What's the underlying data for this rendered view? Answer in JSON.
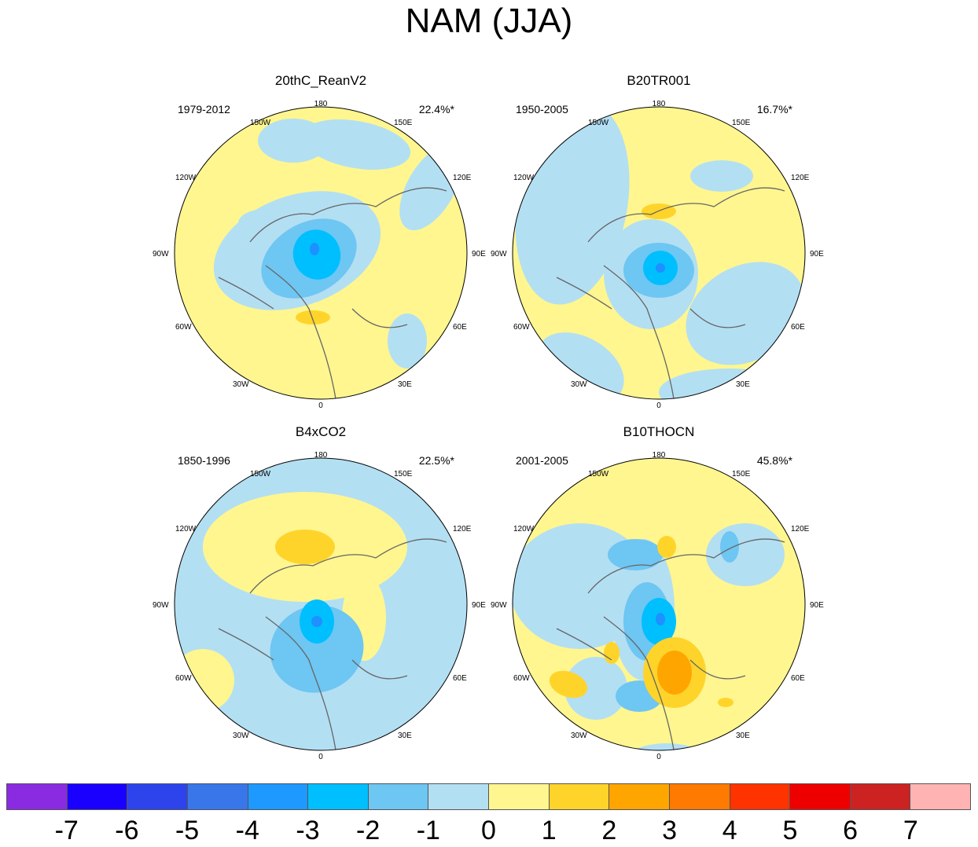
{
  "title": "NAM (JJA)",
  "colors": {
    "cyan_dark": "#00bfff",
    "cyan_mid": "#6ec6f2",
    "light_blue": "#b3dff3",
    "pale_yellow": "#fff68f",
    "gold": "#ffd42a",
    "orange": "#ffa500",
    "blue_core": "#1e90ff"
  },
  "panels": [
    {
      "title": "20thC_ReanV2",
      "period": "1979-2012",
      "variance": "22.4%*",
      "base": "pale_yellow"
    },
    {
      "title": "B20TR001",
      "period": "1950-2005",
      "variance": "16.7%*",
      "base": "pale_yellow"
    },
    {
      "title": "B4xCO2",
      "period": "1850-1996",
      "variance": "22.5%*",
      "base": "light_blue"
    },
    {
      "title": "B10THOCN",
      "period": "2001-2005",
      "variance": "45.8%*",
      "base": "pale_yellow"
    }
  ],
  "lon_labels": {
    "top": "180",
    "top_left": "150W",
    "top_right": "150E",
    "upper_left": "120W",
    "upper_right": "120E",
    "left": "90W",
    "right": "90E",
    "lower_left": "60W",
    "lower_right": "60E",
    "bottom_left": "30W",
    "bottom_right": "30E",
    "bottom": "0"
  },
  "colorbar": {
    "colors": [
      "#8a2be2",
      "#1900ff",
      "#2d44ec",
      "#3876ea",
      "#1e99ff",
      "#00bfff",
      "#6ec6f2",
      "#b3dff3",
      "#fff68f",
      "#ffd42a",
      "#ffa500",
      "#ff7a00",
      "#ff3300",
      "#ee0000",
      "#cc2222",
      "#ffb3b3"
    ],
    "labels": [
      "-7",
      "-6",
      "-5",
      "-4",
      "-3",
      "-2",
      "-1",
      "0",
      "1",
      "2",
      "3",
      "4",
      "5",
      "6",
      "7"
    ]
  }
}
